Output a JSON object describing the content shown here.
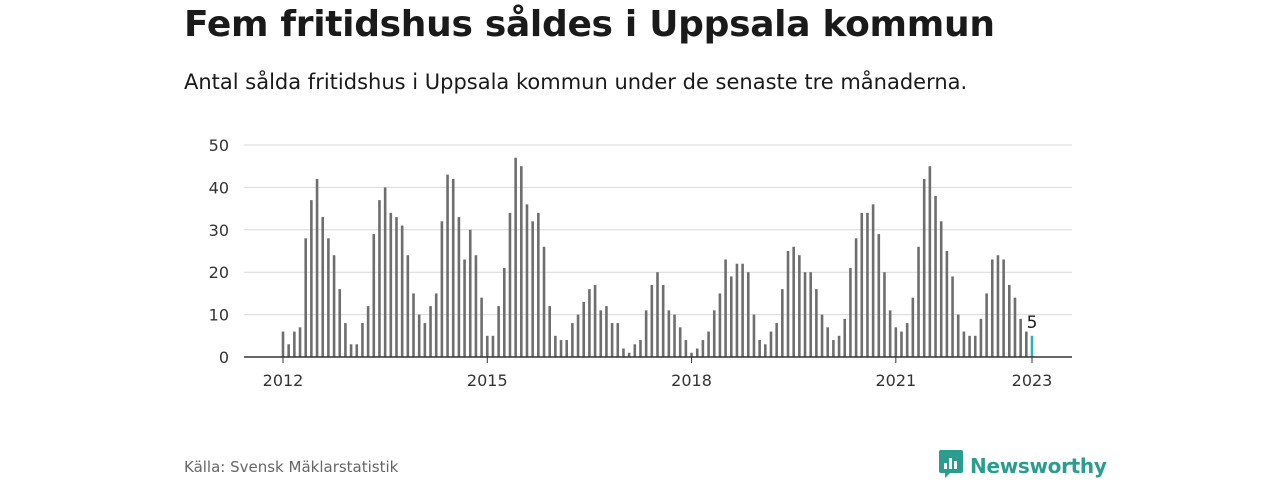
{
  "title": "Fem fritidshus såldes i Uppsala kommun",
  "subtitle": "Antal sålda fritidshus i Uppsala kommun under de senaste tre månaderna.",
  "source": "Källa: Svensk Mäklarstatistik",
  "brand": {
    "name": "Newsworthy",
    "icon": "newsworthy-logo-icon",
    "color": "#2a9d8f"
  },
  "chart_data": {
    "type": "bar",
    "x_start": "2012-01",
    "x_end": "2023-01",
    "ylim": [
      0,
      50
    ],
    "y_ticks": [
      "0",
      "10",
      "20",
      "30",
      "40",
      "50"
    ],
    "x_ticks": [
      "2012",
      "2015",
      "2018",
      "2021",
      "2023"
    ],
    "grid": true,
    "bar_color": "#6e6e6e",
    "highlight_color": "#2ab5b0",
    "highlight_label": "5",
    "values": [
      6,
      3,
      6,
      7,
      28,
      37,
      42,
      33,
      28,
      24,
      16,
      8,
      3,
      3,
      8,
      12,
      29,
      37,
      40,
      34,
      33,
      31,
      24,
      15,
      10,
      8,
      12,
      15,
      32,
      43,
      42,
      33,
      23,
      30,
      24,
      14,
      5,
      5,
      12,
      21,
      34,
      47,
      45,
      36,
      32,
      34,
      26,
      12,
      5,
      4,
      4,
      8,
      10,
      13,
      16,
      17,
      11,
      12,
      8,
      8,
      2,
      1,
      3,
      4,
      11,
      17,
      20,
      17,
      11,
      10,
      7,
      4,
      1,
      2,
      4,
      6,
      11,
      15,
      23,
      19,
      22,
      22,
      20,
      10,
      4,
      3,
      6,
      8,
      16,
      25,
      26,
      24,
      20,
      20,
      16,
      10,
      7,
      4,
      5,
      9,
      21,
      28,
      34,
      34,
      36,
      29,
      20,
      11,
      7,
      6,
      8,
      14,
      26,
      42,
      45,
      38,
      32,
      25,
      19,
      10,
      6,
      5,
      5,
      9,
      15,
      23,
      24,
      23,
      17,
      14,
      9,
      6,
      5
    ]
  }
}
